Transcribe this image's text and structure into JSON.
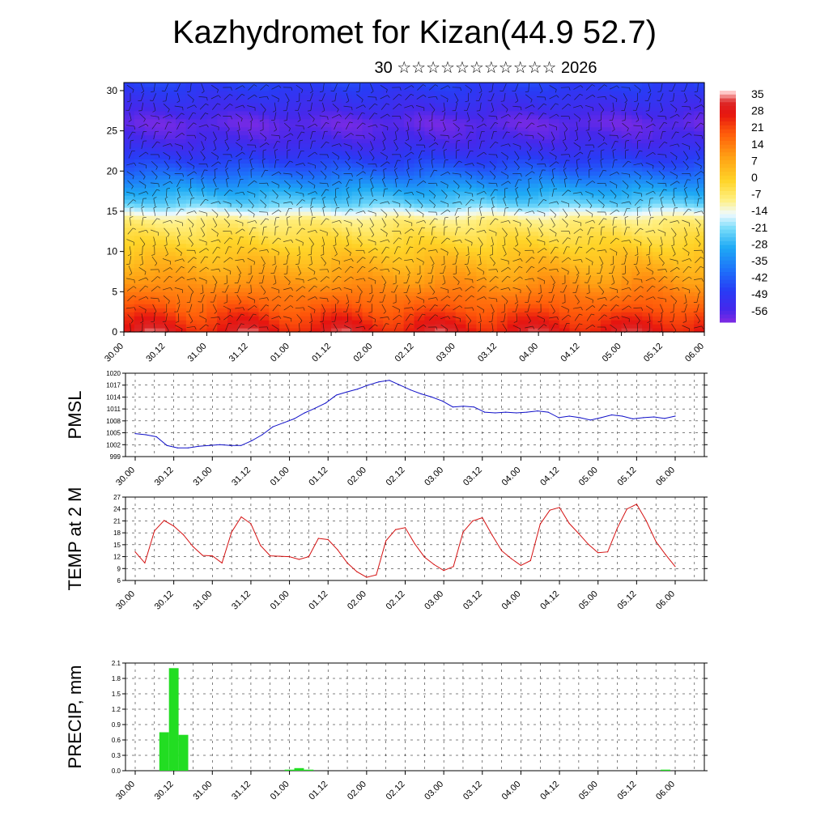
{
  "page": {
    "title": "Kazhydromet for Kizan(44.9 52.7)",
    "subtitle": "30 ☆☆☆☆☆☆☆☆☆☆☆ 2026"
  },
  "chart_data": [
    {
      "id": "cross-section",
      "type": "heatmap",
      "title": "",
      "ylabel": "",
      "ylim": [
        0,
        31
      ],
      "yticks": [
        0,
        5,
        10,
        15,
        20,
        25,
        30
      ],
      "x_labels": [
        "30.00",
        "30.12",
        "31.00",
        "31.12",
        "01.00",
        "01.12",
        "02.00",
        "02.12",
        "03.00",
        "03.12",
        "04.00",
        "04.12",
        "05.00",
        "05.12",
        "06.00"
      ],
      "colorbar_labels": [
        "35",
        "28",
        "21",
        "14",
        "7",
        "0",
        "-7",
        "-14",
        "-21",
        "-28",
        "-35",
        "-42",
        "-49",
        "-56"
      ],
      "temp_profile_by_height": {
        "heights": [
          0,
          3,
          6,
          10,
          14,
          16,
          18,
          20,
          22,
          24,
          26,
          28,
          31
        ],
        "temps": [
          30,
          20,
          12,
          2,
          -8,
          -22,
          -30,
          -40,
          -48,
          -54,
          -57,
          -52,
          -45
        ]
      },
      "overlay": "wind barbs"
    },
    {
      "id": "pmsl",
      "type": "line",
      "ylabel": "PMSL",
      "ylim": [
        999,
        1020
      ],
      "yticks": [
        "999",
        "1002",
        "1005",
        "1008",
        "1011",
        "1014",
        "1017",
        "1020"
      ],
      "x_labels": [
        "30.00",
        "30.12",
        "31.00",
        "31.12",
        "01.00",
        "01.12",
        "02.00",
        "02.12",
        "03.00",
        "03.12",
        "04.00",
        "04.12",
        "05.00",
        "05.12",
        "06.00"
      ],
      "color": "#1010c8",
      "values": [
        1004.8,
        1004.5,
        1004.0,
        1001.8,
        1001.2,
        1001.2,
        1001.6,
        1001.8,
        1002.0,
        1001.8,
        1001.8,
        1003.0,
        1004.5,
        1006.5,
        1007.5,
        1008.5,
        1010.0,
        1011.2,
        1012.5,
        1014.5,
        1015.3,
        1016.0,
        1017.0,
        1017.8,
        1018.2,
        1017.0,
        1015.8,
        1014.8,
        1014.0,
        1013.0,
        1011.5,
        1011.7,
        1011.5,
        1010.2,
        1010.0,
        1010.2,
        1010.0,
        1010.2,
        1010.5,
        1010.2,
        1008.8,
        1009.2,
        1008.8,
        1008.2,
        1008.8,
        1009.5,
        1009.2,
        1008.5,
        1008.8,
        1009.0,
        1008.6,
        1009.2
      ]
    },
    {
      "id": "temp2m",
      "type": "line",
      "ylabel": "TEMP at 2 M",
      "ylim": [
        6,
        27
      ],
      "yticks": [
        "6",
        "9",
        "12",
        "15",
        "18",
        "21",
        "24",
        "27"
      ],
      "x_labels": [
        "30.00",
        "30.12",
        "31.00",
        "31.12",
        "01.00",
        "01.12",
        "02.00",
        "02.12",
        "03.00",
        "03.12",
        "04.00",
        "04.12",
        "05.00",
        "05.12",
        "06.00"
      ],
      "color": "#d41010",
      "values": [
        13.2,
        10.4,
        18.5,
        21.1,
        19.7,
        17.5,
        14.5,
        12.3,
        12.2,
        10.4,
        18.2,
        22.0,
        20.3,
        14.8,
        12.2,
        12.1,
        12.0,
        11.3,
        12.0,
        16.6,
        16.3,
        13.7,
        10.4,
        8.2,
        6.8,
        7.4,
        16.0,
        18.8,
        19.3,
        15.2,
        11.9,
        10.0,
        8.5,
        9.5,
        18.2,
        21.0,
        21.8,
        17.5,
        13.5,
        11.5,
        9.8,
        11.0,
        20.2,
        23.7,
        24.4,
        20.4,
        17.8,
        15.1,
        13.0,
        13.2,
        19.2,
        24.0,
        25.2,
        21.0,
        15.8,
        12.5,
        9.5
      ]
    },
    {
      "id": "precip",
      "type": "bar",
      "ylabel": "PRECIP, mm",
      "ylim": [
        0,
        2.1
      ],
      "yticks": [
        "0.0",
        "0.3",
        "0.6",
        "0.9",
        "1.2",
        "1.5",
        "1.8",
        "2.1"
      ],
      "x_labels": [
        "30.00",
        "30.12",
        "31.00",
        "31.12",
        "01.00",
        "01.12",
        "02.00",
        "02.12",
        "03.00",
        "03.12",
        "04.00",
        "04.12",
        "05.00",
        "05.12",
        "06.00"
      ],
      "color": "#22dd22",
      "steps": [
        3,
        4,
        5,
        16,
        17,
        18,
        55
      ],
      "values": [
        0.75,
        2.0,
        0.7,
        0.02,
        0.05,
        0.02,
        0.02
      ]
    }
  ]
}
